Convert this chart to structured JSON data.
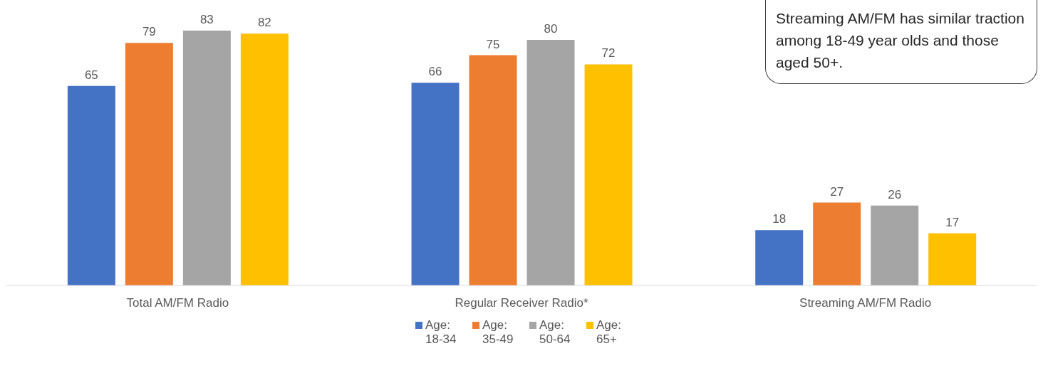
{
  "chart_data": {
    "type": "bar",
    "categories": [
      "Total AM/FM Radio",
      "Regular Receiver Radio*",
      "Streaming AM/FM Radio"
    ],
    "series": [
      {
        "name": "Age: 18-34",
        "color": "#4472c4",
        "values": [
          65,
          66,
          18
        ]
      },
      {
        "name": "Age: 35-49",
        "color": "#ed7d31",
        "values": [
          79,
          75,
          27
        ]
      },
      {
        "name": "Age: 50-64",
        "color": "#a5a5a5",
        "values": [
          83,
          80,
          26
        ]
      },
      {
        "name": "Age: 65+",
        "color": "#ffc000",
        "values": [
          82,
          72,
          17
        ]
      }
    ],
    "data_labels": true,
    "legend": "bottom",
    "annotations": [
      "Streaming AM/FM has similar traction among 18-49 year olds and those aged 50+."
    ]
  }
}
